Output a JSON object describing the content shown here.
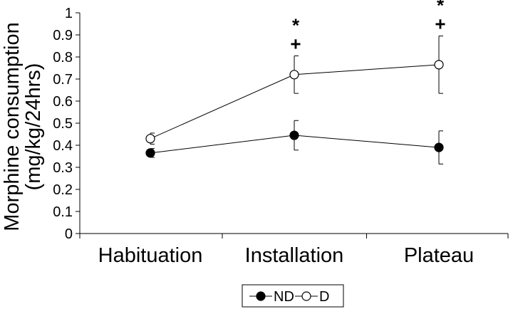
{
  "chart_data": {
    "type": "line",
    "categories": [
      "Habituation",
      "Installation",
      "Plateau"
    ],
    "ylabel_lines": [
      "Morphine  consumption",
      "(mg/kg/24hrs)"
    ],
    "ylim": [
      0,
      1
    ],
    "yticks": [
      "0",
      "0.1",
      "0.2",
      "0.3",
      "0.4",
      "0.5",
      "0.6",
      "0.7",
      "0.8",
      "0.9",
      "1"
    ],
    "grid": false,
    "legend_position": "bottom-center",
    "series": [
      {
        "name": "ND",
        "marker": "filled-circle",
        "values": [
          0.365,
          0.445,
          0.39
        ],
        "error": [
          0.02,
          0.067,
          0.075
        ]
      },
      {
        "name": "D",
        "marker": "open-circle",
        "values": [
          0.43,
          0.72,
          0.765
        ],
        "error": [
          0.025,
          0.085,
          0.13
        ]
      }
    ],
    "annotations": [
      {
        "category": "Installation",
        "symbols": [
          "*",
          "+"
        ]
      },
      {
        "category": "Plateau",
        "symbols": [
          "*",
          "+"
        ]
      }
    ]
  }
}
